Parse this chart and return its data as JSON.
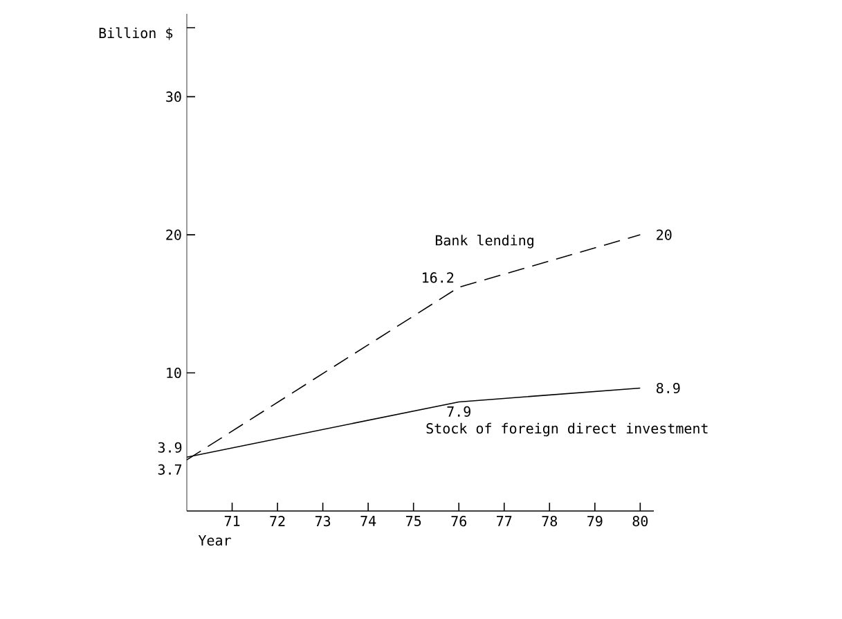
{
  "chart_data": {
    "type": "line",
    "xlabel": "Year",
    "ylabel": "Billion $",
    "xlim": [
      70,
      80.3
    ],
    "xticks": [
      71,
      72,
      73,
      74,
      75,
      76,
      77,
      78,
      79,
      80
    ],
    "ylim": [
      0,
      36
    ],
    "yticks": [
      10,
      20,
      30,
      {
        "value": 35,
        "label": null
      }
    ],
    "series": [
      {
        "name": "Bank lending",
        "color": "#000000",
        "line_style": "dashed",
        "x": [
          70,
          76,
          80
        ],
        "values": [
          3.7,
          16.2,
          20
        ]
      },
      {
        "name": "Stock of foreign direct investment",
        "color": "#000000",
        "line_style": "solid",
        "x": [
          70,
          76,
          80
        ],
        "values": [
          3.9,
          7.9,
          8.9
        ]
      }
    ],
    "data_labels": true,
    "grid": false
  }
}
